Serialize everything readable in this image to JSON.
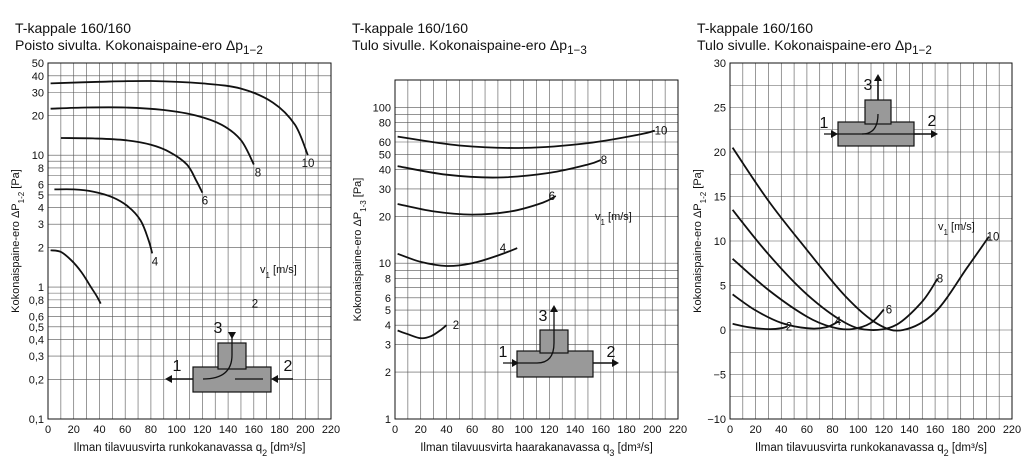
{
  "chart_data": [
    {
      "type": "line",
      "title": "T-kappale 160/160",
      "subtitle": "Poisto sivulta. Kokonaispaine-ero Δp",
      "subtitle_sub": "1−2",
      "xlabel": "Ilman tilavuusvirta runkokanavassa q",
      "xlabel_sub": "2",
      "xlabel_unit": " [dm³/s]",
      "ylabel": "Kokonaispaine-ero ΔP",
      "ylabel_sub": "1-2",
      "ylabel_unit": " [Pa]",
      "yscale": "log",
      "xlim": [
        0,
        220
      ],
      "ylim": [
        0.1,
        50
      ],
      "xticks": [
        0,
        20,
        40,
        60,
        80,
        100,
        120,
        140,
        160,
        180,
        200,
        220
      ],
      "yticks": [
        0.1,
        0.2,
        0.3,
        0.4,
        0.5,
        0.6,
        0.8,
        1,
        2,
        3,
        4,
        5,
        6,
        8,
        10,
        20,
        30,
        40,
        50
      ],
      "ytick_labels": [
        "0,1",
        "0,2",
        "0,3",
        "0,4",
        "0,5",
        "0,6",
        "0,8",
        "1",
        "2",
        "3",
        "4",
        "5",
        "6",
        "8",
        "10",
        "20",
        "30",
        "40",
        "50"
      ],
      "grid": true,
      "param_label": "v",
      "param_label_sub": "1",
      "param_label_unit": " [m/s]",
      "series": [
        {
          "name": "2",
          "x": [
            2,
            10,
            18,
            26,
            32,
            38,
            41
          ],
          "y": [
            1.9,
            1.85,
            1.6,
            1.3,
            1.05,
            0.85,
            0.75
          ]
        },
        {
          "name": "4",
          "x": [
            5,
            20,
            35,
            50,
            62,
            72,
            78,
            81
          ],
          "y": [
            5.5,
            5.5,
            5.3,
            4.8,
            4.1,
            3.2,
            2.3,
            1.8
          ]
        },
        {
          "name": "6",
          "x": [
            10,
            35,
            60,
            80,
            95,
            108,
            115,
            120
          ],
          "y": [
            13.5,
            13.4,
            13,
            12,
            10.5,
            8.5,
            6.5,
            5.2
          ]
        },
        {
          "name": "8",
          "x": [
            2,
            30,
            60,
            90,
            115,
            135,
            150,
            160
          ],
          "y": [
            22.5,
            23,
            23,
            22,
            20,
            17,
            13,
            8.5
          ]
        },
        {
          "name": "10",
          "x": [
            2,
            40,
            80,
            120,
            150,
            175,
            192,
            202
          ],
          "y": [
            35,
            36,
            36.5,
            35,
            32,
            25,
            17,
            10
          ]
        }
      ],
      "inset": {
        "labels": [
          "3",
          "1",
          "2"
        ]
      }
    },
    {
      "type": "line",
      "title": "T-kappale 160/160",
      "subtitle": "Tulo sivulle. Kokonaispaine-ero Δp",
      "subtitle_sub": "1−3",
      "xlabel": "Ilman tilavuusvirta haarakanavassa q",
      "xlabel_sub": "3",
      "xlabel_unit": " [dm³/s]",
      "ylabel": "Kokonaispaine-ero ΔP",
      "ylabel_sub": "1-3",
      "ylabel_unit": " [Pa]",
      "yscale": "log",
      "xlim": [
        0,
        220
      ],
      "ylim": [
        1,
        150
      ],
      "xticks": [
        0,
        20,
        40,
        60,
        80,
        100,
        120,
        140,
        160,
        180,
        200,
        220
      ],
      "yticks": [
        1,
        2,
        3,
        4,
        5,
        6,
        8,
        10,
        20,
        30,
        40,
        50,
        60,
        80,
        100
      ],
      "ytick_labels": [
        "1",
        "2",
        "3",
        "4",
        "5",
        "6",
        "8",
        "10",
        "20",
        "30",
        "40",
        "50",
        "60",
        "80",
        "100"
      ],
      "grid": true,
      "param_label": "v",
      "param_label_sub": "1",
      "param_label_unit": " [m/s]",
      "series": [
        {
          "name": "2",
          "x": [
            2,
            10,
            20,
            28,
            35,
            40
          ],
          "y": [
            3.7,
            3.5,
            3.3,
            3.4,
            3.7,
            4
          ]
        },
        {
          "name": "4",
          "x": [
            2,
            20,
            40,
            60,
            80,
            95
          ],
          "y": [
            11.5,
            10.2,
            9.6,
            10.0,
            11.2,
            12.5
          ]
        },
        {
          "name": "6",
          "x": [
            2,
            30,
            60,
            90,
            115,
            125
          ],
          "y": [
            24,
            21.5,
            20.5,
            21.5,
            24.5,
            27
          ]
        },
        {
          "name": "8",
          "x": [
            2,
            40,
            80,
            120,
            150,
            160
          ],
          "y": [
            42,
            37,
            35.5,
            38,
            43,
            46
          ]
        },
        {
          "name": "10",
          "x": [
            2,
            50,
            100,
            150,
            190,
            202
          ],
          "y": [
            65,
            57,
            55,
            59,
            67,
            71
          ]
        }
      ],
      "inset": {
        "labels": [
          "3",
          "1",
          "2"
        ]
      }
    },
    {
      "type": "line",
      "title": "T-kappale 160/160",
      "subtitle": "Tulo sivulle. Kokonaispaine-ero Δp",
      "subtitle_sub": "1−2",
      "xlabel": "Ilman tilavuusvirta runkokanavassa q",
      "xlabel_sub": "2",
      "xlabel_unit": " [dm³/s]",
      "ylabel": "Kokonaispaine-ero ΔP",
      "ylabel_sub": "1-2",
      "ylabel_unit": " [Pa]",
      "yscale": "linear",
      "xlim": [
        0,
        220
      ],
      "ylim": [
        -10,
        30
      ],
      "xticks": [
        0,
        20,
        40,
        60,
        80,
        100,
        120,
        140,
        160,
        180,
        200,
        220
      ],
      "yticks": [
        -10,
        -5,
        0,
        5,
        10,
        15,
        20,
        25,
        30
      ],
      "ytick_labels": [
        "−10",
        "−5",
        "0",
        "5",
        "10",
        "15",
        "20",
        "25",
        "30"
      ],
      "grid": true,
      "param_label": "v",
      "param_label_sub": "1",
      "param_label_unit": " [m/s]",
      "series": [
        {
          "name": "2",
          "x": [
            2,
            15,
            30,
            40,
            45
          ],
          "y": [
            0.7,
            0.3,
            0.1,
            0.2,
            0.4
          ]
        },
        {
          "name": "4",
          "x": [
            2,
            20,
            40,
            60,
            75,
            85
          ],
          "y": [
            4,
            2.2,
            0.8,
            0.2,
            0.3,
            1.0
          ]
        },
        {
          "name": "6",
          "x": [
            2,
            30,
            60,
            80,
            95,
            110,
            120
          ],
          "y": [
            8,
            4.5,
            1.5,
            0.3,
            0.1,
            0.8,
            2.3
          ]
        },
        {
          "name": "8",
          "x": [
            2,
            30,
            60,
            90,
            110,
            130,
            150,
            162
          ],
          "y": [
            13.5,
            8.5,
            4,
            0.8,
            0,
            0.6,
            3.2,
            5.8
          ]
        },
        {
          "name": "10",
          "x": [
            2,
            30,
            60,
            90,
            115,
            135,
            160,
            185,
            202
          ],
          "y": [
            20.5,
            14.5,
            9,
            3.8,
            0.7,
            0,
            2,
            7,
            10.5
          ]
        }
      ],
      "inset": {
        "labels": [
          "3",
          "1",
          "2"
        ]
      }
    }
  ]
}
